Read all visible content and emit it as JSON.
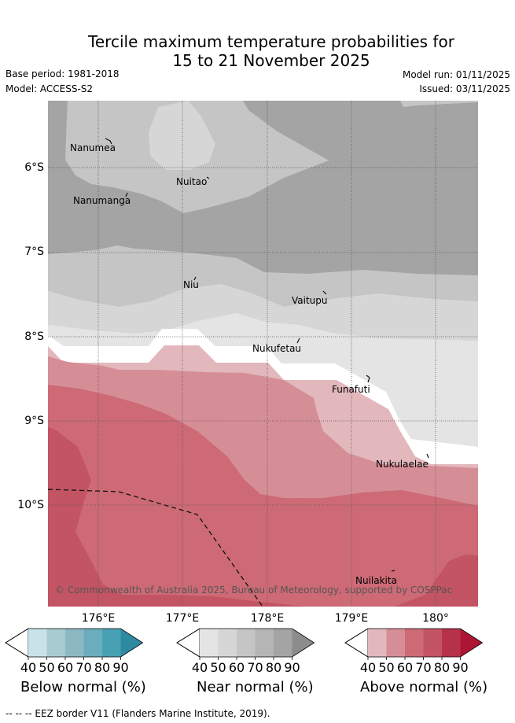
{
  "title": {
    "line1": "Tercile maximum temperature probabilities for",
    "line2": "15 to 21 November 2025"
  },
  "meta": {
    "base_period": "Base period: 1981-2018",
    "model": "Model: ACCESS-S2",
    "model_run": "Model run: 01/11/2025",
    "issued": "Issued: 03/11/2025"
  },
  "map": {
    "lat_labels": [
      "6°S",
      "7°S",
      "8°S",
      "9°S",
      "10°S"
    ],
    "lon_labels": [
      "176°E",
      "177°E",
      "178°E",
      "179°E",
      "180°"
    ],
    "places": [
      "Nanumea",
      "Nuitao",
      "Nanumanga",
      "Niu",
      "Vaitupu",
      "Nukufetau",
      "Funafuti",
      "Nukulaelae",
      "Nuilakita"
    ],
    "copyright": "© Commonwealth of Australia 2025, Bureau of Meteorology, supported by COSPPac"
  },
  "colorbars": [
    {
      "label": "Below normal (%)",
      "ticks": [
        "40",
        "50",
        "60",
        "70",
        "80",
        "90"
      ],
      "colors": [
        "#c9e2e9",
        "#a7cbd1",
        "#8bb8c3",
        "#6badbc",
        "#47a1b2",
        "#2d8aa1"
      ]
    },
    {
      "label": "Near normal (%)",
      "ticks": [
        "40",
        "50",
        "60",
        "70",
        "80",
        "90"
      ],
      "colors": [
        "#e4e4e4",
        "#d6d6d6",
        "#c5c5c5",
        "#b5b5b5",
        "#a4a4a4",
        "#8c8c8c"
      ]
    },
    {
      "label": "Above normal (%)",
      "ticks": [
        "40",
        "50",
        "60",
        "70",
        "80",
        "90"
      ],
      "colors": [
        "#e2b8bd",
        "#d68e96",
        "#cd6a76",
        "#c35463",
        "#b6324a",
        "#ae1535"
      ]
    }
  ],
  "eez_legend": "--  --  -- EEZ border V11 (Flanders Marine Institute, 2019)."
}
